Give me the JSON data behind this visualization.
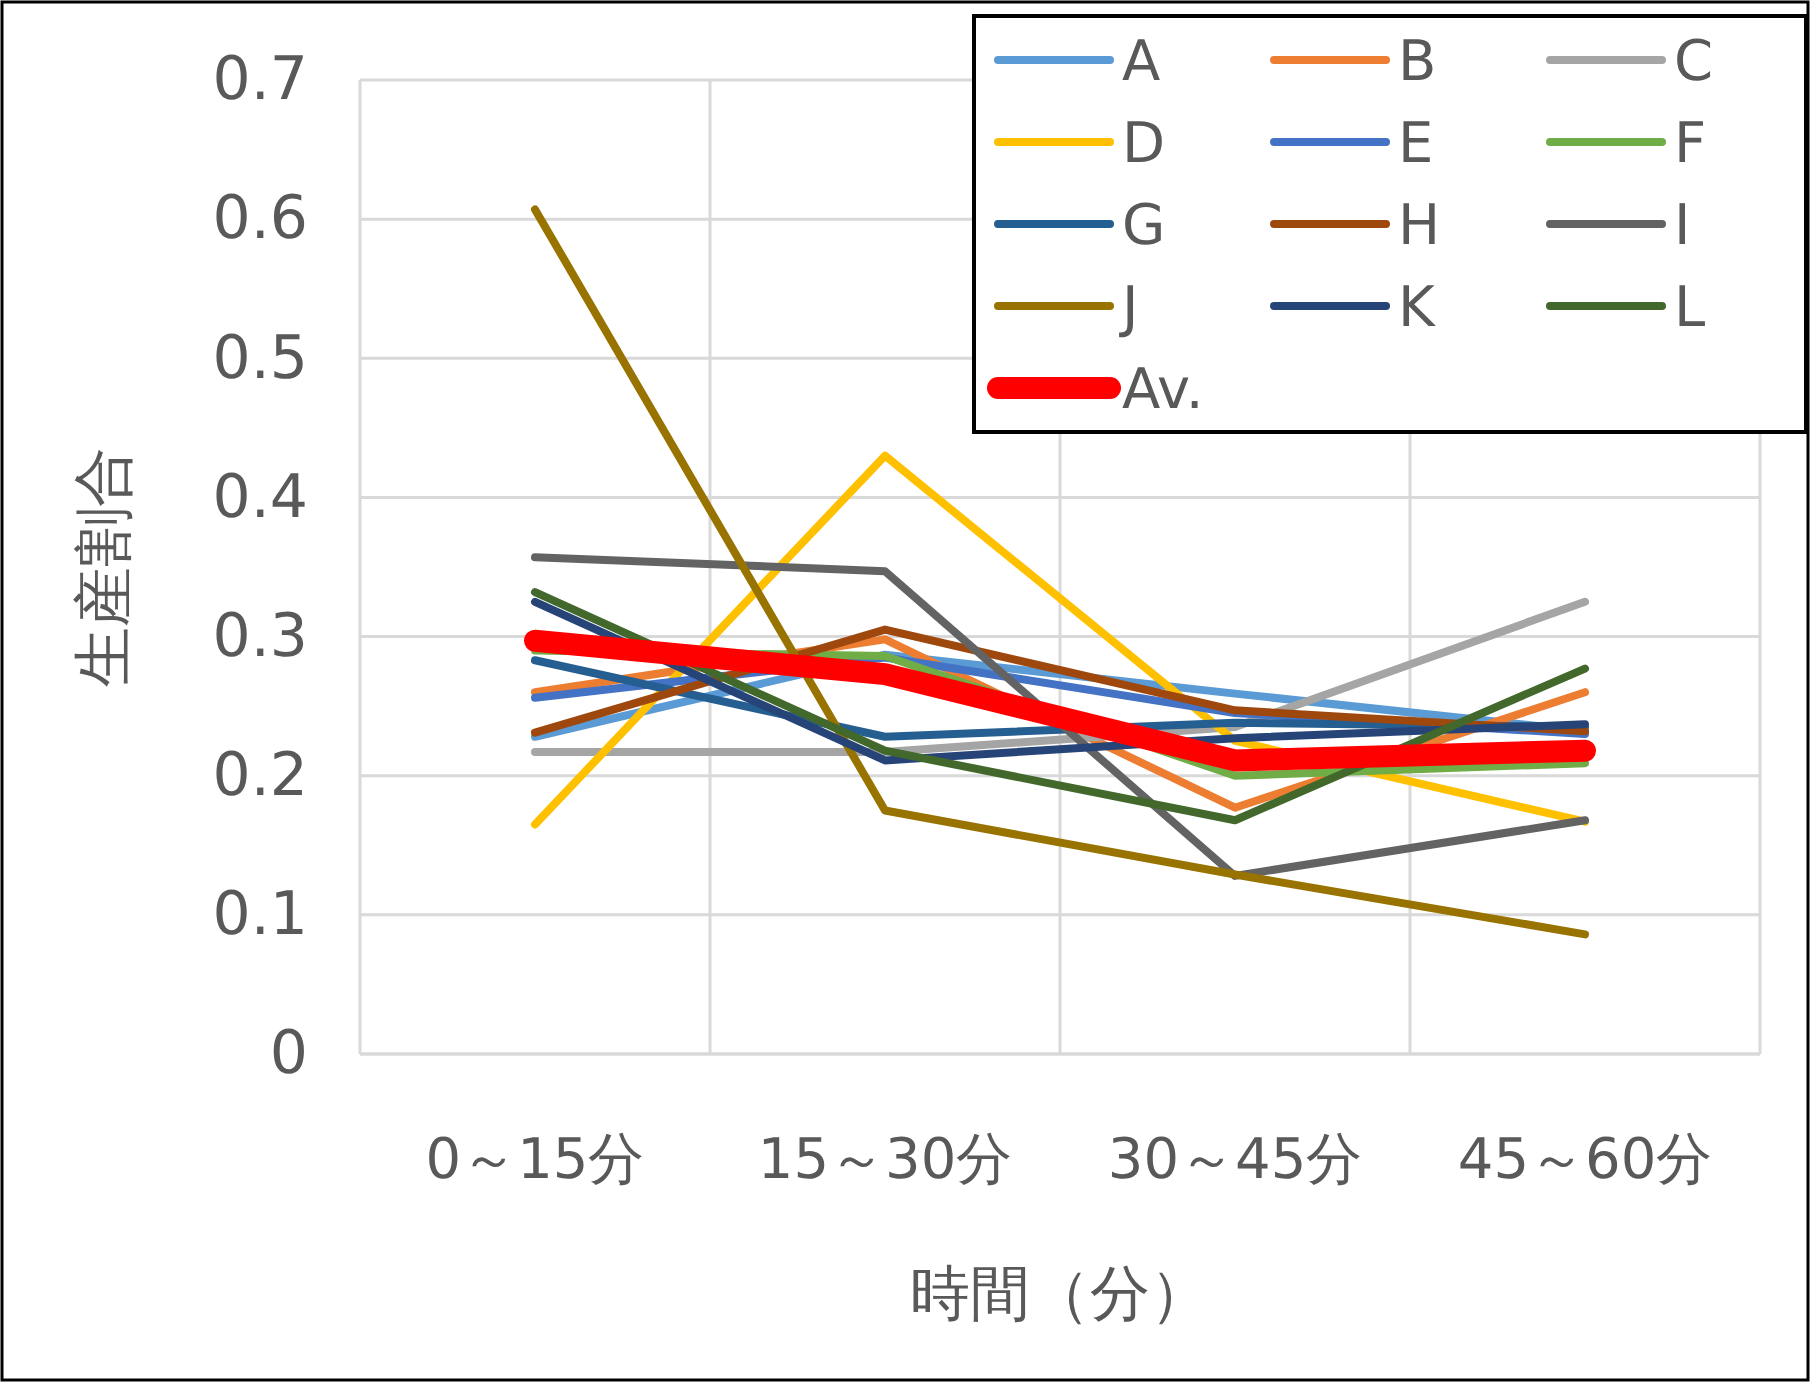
{
  "chart_data": {
    "type": "line",
    "xlabel": "時間（分）",
    "ylabel": "生産割合",
    "categories": [
      "0～15分",
      "15～30分",
      "30～45分",
      "45～60分"
    ],
    "ylim": [
      0,
      0.7
    ],
    "yticks": [
      {
        "value": 0,
        "label": "0"
      },
      0.1,
      0.2,
      0.3,
      0.4,
      0.5,
      0.6,
      0.7
    ],
    "grid": true,
    "legend": "top right",
    "marker": "none",
    "line_style": "solid",
    "series": [
      {
        "name": "A",
        "color": "#5b9bd5",
        "values": [
          0.228,
          0.287,
          0.259,
          0.232
        ]
      },
      {
        "name": "B",
        "color": "#ed7d31",
        "values": [
          0.26,
          0.298,
          0.177,
          0.26
        ]
      },
      {
        "name": "C",
        "color": "#a5a5a5",
        "values": [
          0.217,
          0.217,
          0.235,
          0.325
        ]
      },
      {
        "name": "D",
        "color": "#ffc000",
        "values": [
          0.165,
          0.43,
          0.225,
          0.167
        ]
      },
      {
        "name": "E",
        "color": "#4472c4",
        "values": [
          0.256,
          0.285,
          0.245,
          0.23
        ]
      },
      {
        "name": "F",
        "color": "#70ad47",
        "values": [
          0.29,
          0.286,
          0.2,
          0.209
        ]
      },
      {
        "name": "G",
        "color": "#255e91",
        "values": [
          0.283,
          0.228,
          0.238,
          0.235
        ]
      },
      {
        "name": "H",
        "color": "#9e480e",
        "values": [
          0.231,
          0.305,
          0.247,
          0.232
        ]
      },
      {
        "name": "I",
        "color": "#636363",
        "values": [
          0.357,
          0.347,
          0.128,
          0.168
        ]
      },
      {
        "name": "J",
        "color": "#997300",
        "values": [
          0.607,
          0.175,
          0.129,
          0.086
        ]
      },
      {
        "name": "K",
        "color": "#264478",
        "values": [
          0.325,
          0.211,
          0.227,
          0.237
        ]
      },
      {
        "name": "L",
        "color": "#43682b",
        "values": [
          0.332,
          0.218,
          0.168,
          0.277
        ]
      },
      {
        "name": "Av.",
        "color": "#ff0000",
        "values": [
          0.297,
          0.273,
          0.211,
          0.218
        ]
      }
    ]
  }
}
